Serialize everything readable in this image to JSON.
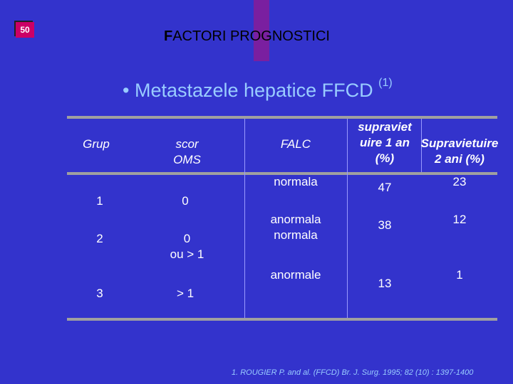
{
  "slide": {
    "number": "50",
    "title_first": "F",
    "title_rest": "ACTORI PROGNOSTICI",
    "subtitle": "• Metastazele hepatice FFCD",
    "subtitle_sup": "(1)"
  },
  "table": {
    "headers": {
      "grup": "Grup",
      "scor_line1": "scor",
      "scor_line2": "OMS",
      "falc": "FALC",
      "surv1_line1": "supraviet",
      "surv1_line2": "uire 1 an",
      "surv1_line3": "(%)",
      "surv2_line1": "Supravietuire",
      "surv2_line2": "2 ani (%)"
    },
    "rows": [
      {
        "grup": "1",
        "scor": "0",
        "falc": "normala",
        "s1": "47",
        "s2": "23"
      },
      {
        "grup": "2",
        "scor_line1": "0",
        "scor_line2": "ou > 1",
        "falc_line1": "anormala",
        "falc_line2": "normala",
        "s1": "38",
        "s2": "12"
      },
      {
        "grup": "3",
        "scor": "> 1",
        "falc": "anormale",
        "s1": "13",
        "s2": "1"
      }
    ]
  },
  "footnote": "1. ROUGIER P. and al. (FFCD) Br. J. Surg. 1995; 82 (10) : 1397-1400"
}
